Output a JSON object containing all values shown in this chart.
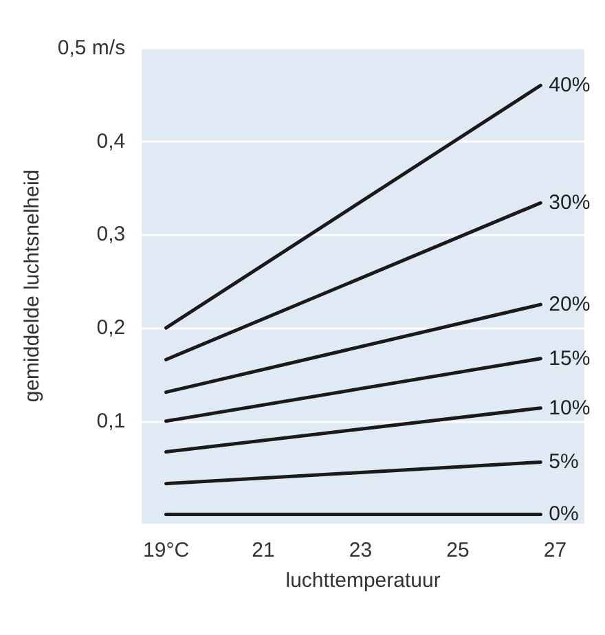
{
  "chart_data": {
    "type": "line",
    "xlabel": "luchttemperatuur",
    "ylabel": "gemiddelde luchtsnelheid",
    "x": [
      19,
      26.7
    ],
    "series": [
      {
        "name": "40%",
        "color": "#1a1a1a",
        "values": [
          0.2,
          0.46
        ]
      },
      {
        "name": "30%",
        "color": "#1a1a1a",
        "values": [
          0.166,
          0.334
        ]
      },
      {
        "name": "20%",
        "color": "#1a1a1a",
        "values": [
          0.131,
          0.225
        ]
      },
      {
        "name": "15%",
        "color": "#1a1a1a",
        "values": [
          0.1,
          0.167
        ]
      },
      {
        "name": "10%",
        "color": "#1a1a1a",
        "values": [
          0.067,
          0.114
        ]
      },
      {
        "name": "5%",
        "color": "#1a1a1a",
        "values": [
          0.033,
          0.056
        ]
      },
      {
        "name": "0%",
        "color": "#1a1a1a",
        "values": [
          0,
          0
        ]
      }
    ],
    "xlim": [
      18.5,
      27.6
    ],
    "xticks": [
      {
        "value": 19,
        "label": "19°C"
      },
      21,
      23,
      25,
      27
    ],
    "ylim": [
      -0.01,
      0.5
    ],
    "yticks": [
      {
        "value": 0.1,
        "label": "0,1"
      },
      {
        "value": 0.2,
        "label": "0,2"
      },
      {
        "value": 0.3,
        "label": "0,3"
      },
      {
        "value": 0.4,
        "label": "0,4"
      },
      {
        "value": 0.5,
        "label": "0,5 m/s"
      }
    ],
    "grid": "y",
    "legend": false
  }
}
